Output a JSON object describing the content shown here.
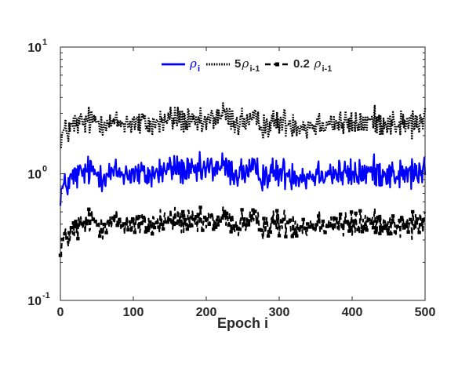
{
  "chart_data": {
    "type": "line",
    "xlabel": "Epoch i",
    "ylabel": "",
    "title": "",
    "xlim": [
      0,
      500
    ],
    "ylim": [
      0.1,
      10
    ],
    "yscale": "log",
    "grid": false,
    "legend_position": "top-center",
    "x_ticks": [
      "0",
      "100",
      "200",
      "300",
      "400",
      "500"
    ],
    "y_ticks": [
      {
        "value": 0.1,
        "base": "10",
        "exp": "-1"
      },
      {
        "value": 1,
        "base": "10",
        "exp": "0"
      },
      {
        "value": 10,
        "base": "10",
        "exp": "1"
      }
    ],
    "x": [
      0,
      20,
      40,
      60,
      80,
      100,
      120,
      140,
      160,
      180,
      200,
      220,
      240,
      260,
      280,
      300,
      320,
      340,
      360,
      380,
      400,
      420,
      440,
      460,
      480,
      500
    ],
    "series": [
      {
        "name_symbol": "ρ",
        "name_subscript": "i",
        "coef": "",
        "style": "solid",
        "color": "#0000ff",
        "marker": "none",
        "values": [
          0.72,
          0.95,
          1.05,
          0.98,
          1.02,
          1.0,
          0.97,
          1.05,
          1.12,
          1.0,
          1.08,
          1.15,
          1.0,
          1.05,
          0.98,
          1.02,
          1.0,
          0.95,
          1.05,
          1.0,
          0.98,
          1.02,
          1.05,
          0.97,
          1.0,
          1.02
        ]
      },
      {
        "name_symbol": "ρ",
        "name_subscript": "i-1",
        "coef": "5",
        "style": "dotted",
        "color": "#000000",
        "marker": "none",
        "values": [
          2.0,
          2.45,
          2.6,
          2.55,
          2.5,
          2.55,
          2.45,
          2.6,
          2.75,
          2.5,
          2.55,
          2.95,
          2.55,
          2.6,
          2.45,
          2.55,
          2.5,
          2.4,
          2.6,
          2.5,
          2.45,
          2.55,
          2.6,
          2.45,
          2.5,
          2.55
        ]
      },
      {
        "name_symbol": "ρ",
        "name_subscript": "i-1",
        "coef": "0.2",
        "style": "dashed",
        "color": "#000000",
        "marker": "square",
        "values": [
          0.28,
          0.36,
          0.42,
          0.4,
          0.41,
          0.4,
          0.39,
          0.42,
          0.44,
          0.4,
          0.41,
          0.45,
          0.4,
          0.42,
          0.39,
          0.41,
          0.4,
          0.38,
          0.42,
          0.4,
          0.39,
          0.41,
          0.42,
          0.39,
          0.4,
          0.41
        ]
      }
    ]
  }
}
